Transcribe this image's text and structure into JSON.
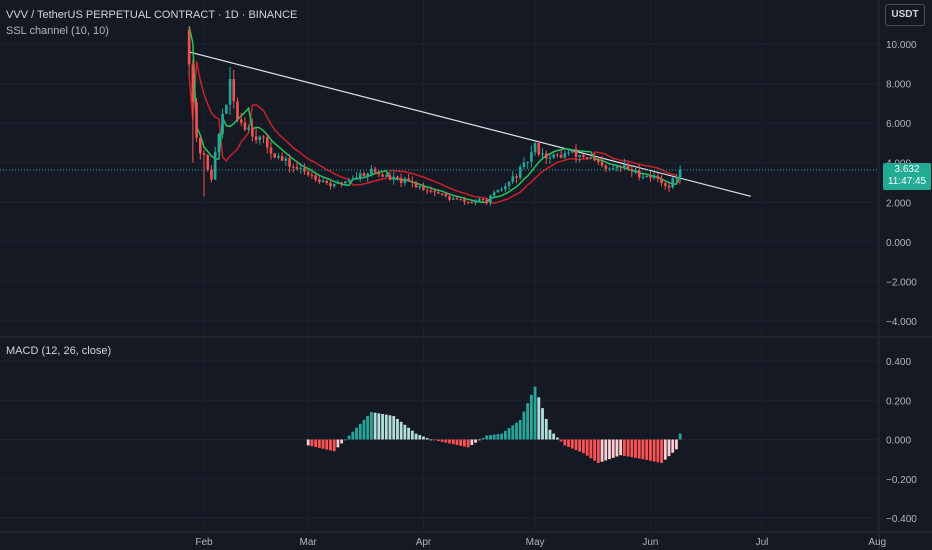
{
  "header": {
    "symbol_line": "VVV / TetherUS PERPETUAL CONTRACT · 1D · BINANCE",
    "indicator": "SSL channel (10, 10)"
  },
  "currency_button": "USDT",
  "last_price": {
    "value": "3.632",
    "countdown": "11:47:45"
  },
  "macd_label": "MACD (12, 26, close)",
  "colors": {
    "up": "#26a69a",
    "down": "#ef5350",
    "ssl_up": "#22c55e",
    "ssl_down": "#c8212b",
    "trend": "#e0e3eb",
    "bg": "#151924"
  },
  "chart_data": [
    {
      "type": "candlestick",
      "title": "VVV / TetherUS PERPETUAL CONTRACT · 1D · BINANCE",
      "x_ticks": [
        "Feb",
        "Mar",
        "Apr",
        "May",
        "Jun",
        "Jul",
        "Aug"
      ],
      "y_ticks": [
        "10.000",
        "8.000",
        "6.000",
        "4.000",
        "2.000",
        "0.000",
        "−2.000",
        "−4.000"
      ],
      "ylim": [
        -4.5,
        11
      ],
      "grid": true,
      "close_path": [
        [
          "Jan 28",
          9.5
        ],
        [
          "Jan 30",
          5.0
        ],
        [
          "Feb 1",
          4.2
        ],
        [
          "Feb 3",
          3.3
        ],
        [
          "Feb 6",
          6.5
        ],
        [
          "Feb 8",
          7.8
        ],
        [
          "Feb 10",
          6.3
        ],
        [
          "Feb 13",
          5.8
        ],
        [
          "Feb 17",
          5.0
        ],
        [
          "Feb 22",
          4.1
        ],
        [
          "Feb 27",
          3.6
        ],
        [
          "Mar 3",
          3.3
        ],
        [
          "Mar 8",
          2.8
        ],
        [
          "Mar 12",
          3.2
        ],
        [
          "Mar 18",
          3.6
        ],
        [
          "Mar 23",
          3.2
        ],
        [
          "Mar 28",
          3.0
        ],
        [
          "Apr 3",
          2.6
        ],
        [
          "Apr 8",
          2.2
        ],
        [
          "Apr 13",
          2.0
        ],
        [
          "Apr 18",
          2.1
        ],
        [
          "Apr 23",
          2.8
        ],
        [
          "Apr 28",
          3.8
        ],
        [
          "May 1",
          4.8
        ],
        [
          "May 5",
          4.2
        ],
        [
          "May 10",
          4.5
        ],
        [
          "May 15",
          4.3
        ],
        [
          "May 20",
          3.6
        ],
        [
          "May 25",
          3.8
        ],
        [
          "May 28",
          3.5
        ],
        [
          "Jun 3",
          3.2
        ],
        [
          "Jun 6",
          2.8
        ],
        [
          "Jun 9",
          3.632
        ]
      ],
      "ssl_channel": {
        "period_high": 10,
        "period_low": 10
      },
      "trendline": {
        "from": [
          "Jan 28",
          9.6
        ],
        "to": [
          "Jun 28",
          2.3
        ]
      },
      "last_price": 3.632
    },
    {
      "type": "bar",
      "title": "MACD (12, 26, close)",
      "y_ticks": [
        "0.400",
        "0.200",
        "0.000",
        "−0.200",
        "−0.400"
      ],
      "ylim": [
        -0.42,
        0.45
      ],
      "histogram_path": [
        [
          "Mar 1",
          -0.03
        ],
        [
          "Mar 8",
          -0.06
        ],
        [
          "Mar 12",
          0.02
        ],
        [
          "Mar 18",
          0.14
        ],
        [
          "Mar 24",
          0.12
        ],
        [
          "Mar 30",
          0.03
        ],
        [
          "Apr 3",
          0.0
        ],
        [
          "Apr 8",
          -0.02
        ],
        [
          "Apr 13",
          -0.04
        ],
        [
          "Apr 18",
          0.02
        ],
        [
          "Apr 22",
          0.03
        ],
        [
          "Apr 27",
          0.1
        ],
        [
          "May 1",
          0.27
        ],
        [
          "May 5",
          0.05
        ],
        [
          "May 9",
          -0.03
        ],
        [
          "May 14",
          -0.07
        ],
        [
          "May 18",
          -0.12
        ],
        [
          "May 24",
          -0.08
        ],
        [
          "May 30",
          -0.1
        ],
        [
          "Jun 4",
          -0.12
        ],
        [
          "Jun 8",
          -0.05
        ],
        [
          "Jun 9",
          0.03
        ]
      ]
    }
  ]
}
